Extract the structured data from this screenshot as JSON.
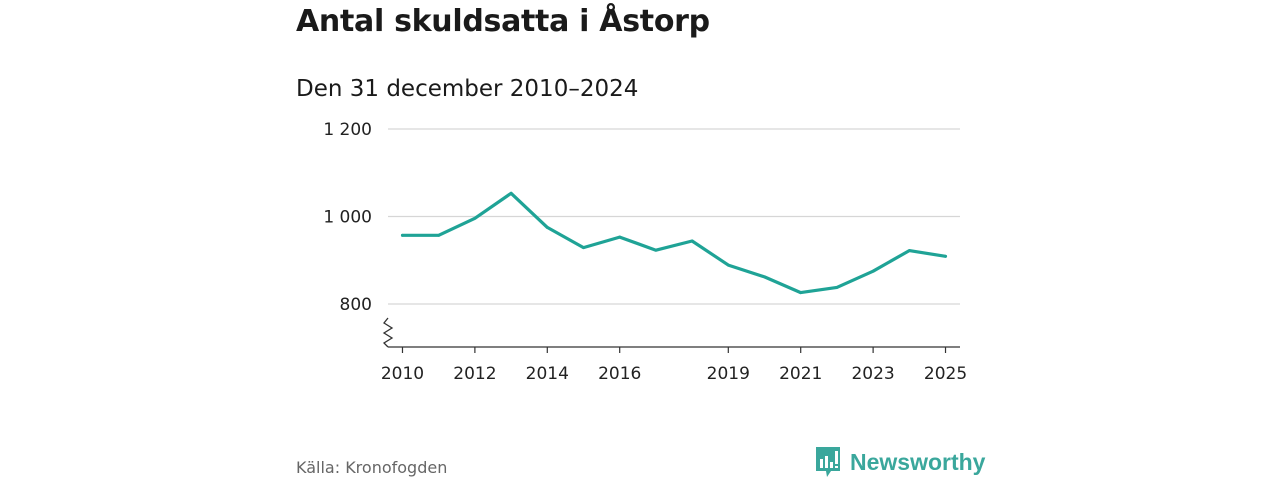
{
  "title": "Antal skuldsatta i Åstorp",
  "subtitle": "Den 31 december 2010–2024",
  "source": "Källa: Kronofogden",
  "brand": {
    "name": "Newsworthy",
    "color": "#3aa79c",
    "icon": "newsworthy-logo-icon"
  },
  "chart_data": {
    "type": "line",
    "title": "Antal skuldsatta i Åstorp",
    "subtitle": "Den 31 december 2010–2024",
    "xlabel": "",
    "ylabel": "",
    "ylim": [
      700,
      1200
    ],
    "xlim": [
      2009.6,
      2025.4
    ],
    "yticks": [
      800,
      1000,
      1200
    ],
    "ytick_labels": [
      "800",
      "1 000",
      "1 200"
    ],
    "xticks": [
      2010,
      2012,
      2014,
      2016,
      2019,
      2021,
      2023,
      2025
    ],
    "xtick_labels": [
      "2010",
      "2012",
      "2014",
      "2016",
      "2019",
      "2021",
      "2023",
      "2025"
    ],
    "axis_break": true,
    "grid": true,
    "series": [
      {
        "name": "Antal skuldsatta",
        "color": "#1fa396",
        "x": [
          2010,
          2011,
          2012,
          2013,
          2014,
          2015,
          2016,
          2017,
          2018,
          2019,
          2020,
          2021,
          2022,
          2023,
          2024,
          2025
        ],
        "values": [
          957,
          957,
          996,
          1053,
          975,
          929,
          953,
          923,
          944,
          889,
          862,
          826,
          838,
          875,
          922,
          909
        ]
      }
    ]
  }
}
